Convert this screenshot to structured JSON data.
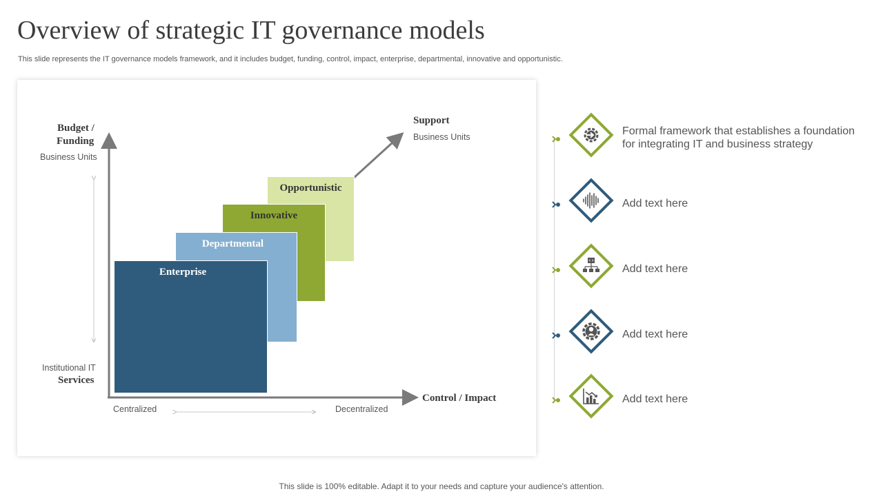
{
  "title": "Overview of strategic IT governance models",
  "subtitle": "This slide represents the IT governance models framework, and it includes budget, funding, control, impact, enterprise, departmental, innovative and opportunistic.",
  "footer": "This slide is 100% editable. Adapt it to your needs and capture your audience's attention.",
  "diagram": {
    "y_axis_title_1": "Budget /",
    "y_axis_title_2": "Funding",
    "y_top_label": "Business Units",
    "y_bottom_label_1": "Institutional IT",
    "y_bottom_label_2": "Services",
    "x_axis_title": "Control / Impact",
    "x_left_label": "Centralized",
    "x_right_label": "Decentralized",
    "arrow_title": "Support",
    "arrow_sub": "Business Units",
    "boxes": [
      {
        "label": "Enterprise",
        "color": "#2f5b7c",
        "text_color": "#ffffff"
      },
      {
        "label": "Departmental",
        "color": "#85afd0",
        "text_color": "#ffffff"
      },
      {
        "label": "Innovative",
        "color": "#8ea833",
        "text_color": "#333333"
      },
      {
        "label": "Opportunistic",
        "color": "#d9e5a5",
        "text_color": "#333333"
      }
    ]
  },
  "items": [
    {
      "text": "Formal framework that establishes a foundation for integrating IT and business strategy",
      "color": "#8ea833",
      "icon": "gear-arrow-icon"
    },
    {
      "text": "Add text here",
      "color": "#2f5b7c",
      "icon": "sound-wave-icon"
    },
    {
      "text": "Add text here",
      "color": "#8ea833",
      "icon": "network-icon"
    },
    {
      "text": "Add text here",
      "color": "#2f5b7c",
      "icon": "gear-person-icon"
    },
    {
      "text": "Add text here",
      "color": "#8ea833",
      "icon": "chart-down-icon"
    }
  ]
}
